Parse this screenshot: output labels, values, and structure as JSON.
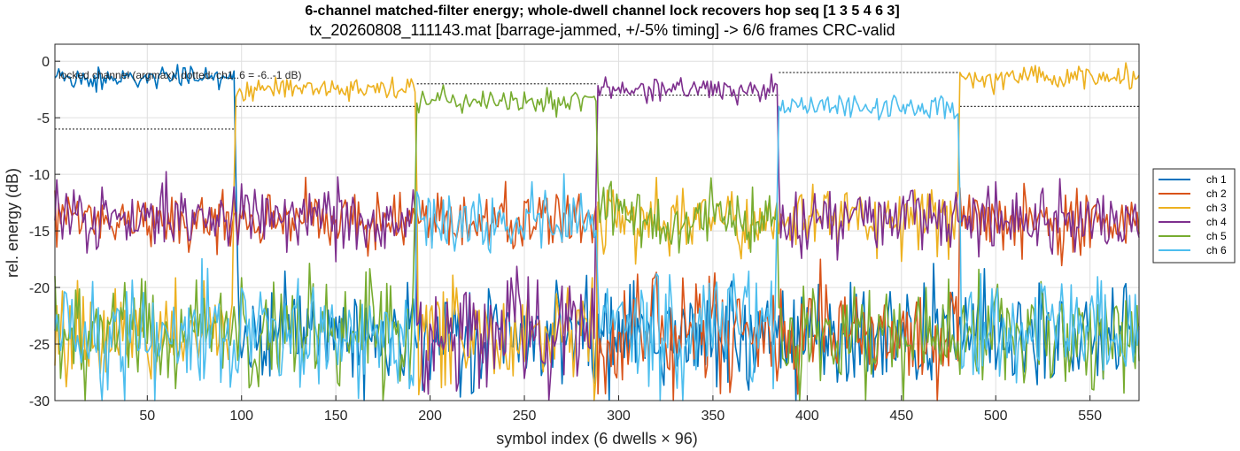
{
  "chart_data": {
    "type": "line",
    "title": "6-channel matched-filter energy; whole-dwell channel lock recovers hop seq [1 3 5 4 6 3]",
    "subtitle": "tx_20260808_111143.mat  [barrage-jammed, +/-5% timing]  ->  6/6 frames CRC-valid",
    "xlabel": "symbol index (6 dwells × 96)",
    "ylabel": "rel. energy (dB)",
    "annotation": "locked channel (argmax); dotted: ch1..6 = -6..-1 dB)",
    "xlim": [
      1,
      576
    ],
    "ylim": [
      -30,
      1.5
    ],
    "xticks": [
      50,
      100,
      150,
      200,
      250,
      300,
      350,
      400,
      450,
      500,
      550
    ],
    "yticks": [
      -30,
      -25,
      -20,
      -15,
      -10,
      -5,
      0
    ],
    "grid": true,
    "legend_position": "right",
    "dwell_length": 96,
    "hop_sequence": [
      1,
      3,
      5,
      4,
      6,
      3
    ],
    "dwell_boundaries": [
      1,
      97,
      193,
      289,
      385,
      481,
      576
    ],
    "dwell_reference_levels_db": [
      -6,
      -4,
      -2,
      -3,
      -1,
      -4
    ],
    "locked_level_db": [
      -1.5,
      -2.5,
      -3.5,
      -2.5,
      -4,
      -1.5
    ],
    "jammed_level_db": [
      -14,
      -14,
      -14,
      -14,
      -14,
      -14
    ],
    "noise_floor_db": -24,
    "series": [
      {
        "name": "ch 1",
        "color": "#0072BD"
      },
      {
        "name": "ch 2",
        "color": "#D95319"
      },
      {
        "name": "ch 3",
        "color": "#EDB120"
      },
      {
        "name": "ch 4",
        "color": "#7E2F8E"
      },
      {
        "name": "ch 5",
        "color": "#77AC30"
      },
      {
        "name": "ch 6",
        "color": "#4DBEEE"
      }
    ],
    "jammed_channels_per_dwell": [
      [
        2,
        4
      ],
      [
        2,
        4
      ],
      [
        6,
        2
      ],
      [
        3,
        5
      ],
      [
        4,
        3
      ],
      [
        4,
        2
      ]
    ]
  }
}
